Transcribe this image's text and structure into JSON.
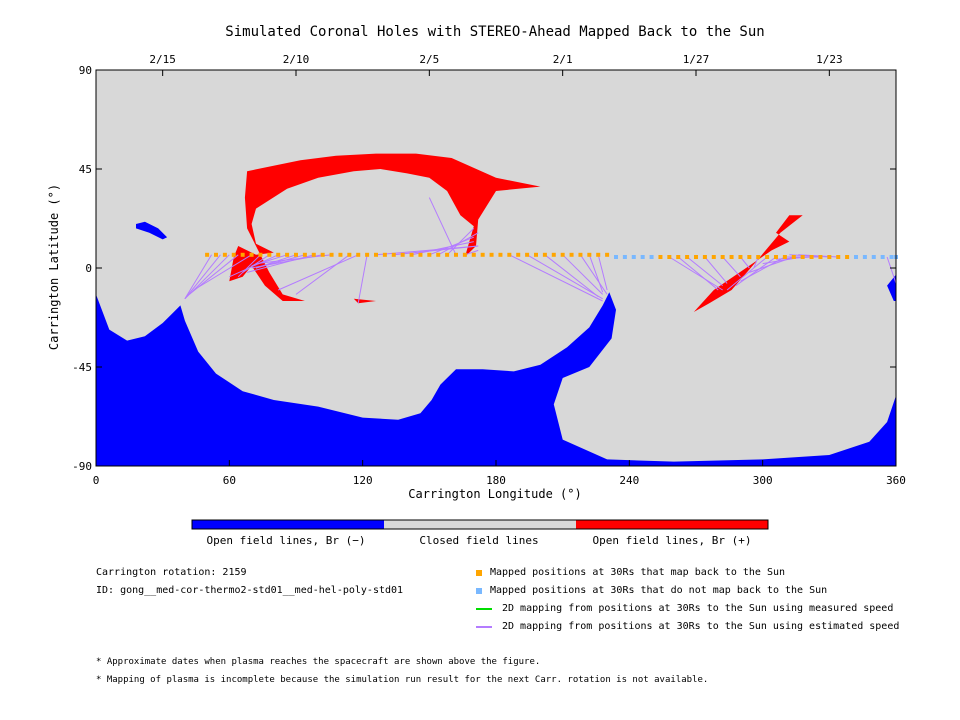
{
  "chart_data": {
    "type": "map",
    "title": "Simulated Coronal Holes with STEREO-Ahead Mapped Back to the Sun",
    "xlabel": "Carrington Longitude (°)",
    "ylabel": "Carrington Latitude (°)",
    "xlim": [
      0,
      360
    ],
    "ylim": [
      -90,
      90
    ],
    "x_ticks": [
      0,
      60,
      120,
      180,
      240,
      300,
      360
    ],
    "y_ticks": [
      -90,
      -45,
      0,
      45,
      90
    ],
    "top_axis": {
      "ticks": [
        {
          "label": "2/15",
          "lon": 30
        },
        {
          "label": "2/10",
          "lon": 90
        },
        {
          "label": "2/5",
          "lon": 150
        },
        {
          "label": "2/1",
          "lon": 210
        },
        {
          "label": "1/27",
          "lon": 270
        },
        {
          "label": "1/23",
          "lon": 330
        }
      ]
    },
    "colors": {
      "negative": "#0000ff",
      "closed": "#d8d8d8",
      "positive": "#ff0000",
      "mapped": "#ffa500",
      "unmapped": "#79b8ff",
      "measured": "#00dd00",
      "estimated": "#b47cff"
    },
    "colorbar": [
      {
        "label": "Open field lines, Br (−)",
        "color": "#0000ff"
      },
      {
        "label": "Closed field lines",
        "color": "#d8d8d8"
      },
      {
        "label": "Open field lines, Br (+)",
        "color": "#ff0000"
      }
    ],
    "negative_regions": [
      {
        "points": [
          [
            0,
            -90
          ],
          [
            0,
            -12
          ],
          [
            6,
            -28
          ],
          [
            14,
            -33
          ],
          [
            22,
            -31
          ],
          [
            30,
            -25
          ],
          [
            35,
            -20
          ],
          [
            38,
            -17
          ],
          [
            40,
            -24
          ],
          [
            46,
            -38
          ],
          [
            54,
            -48
          ],
          [
            66,
            -56
          ],
          [
            80,
            -60
          ],
          [
            100,
            -63
          ],
          [
            120,
            -68
          ],
          [
            136,
            -69
          ],
          [
            146,
            -66
          ],
          [
            151,
            -60
          ],
          [
            155,
            -53
          ],
          [
            162,
            -46
          ],
          [
            174,
            -46
          ],
          [
            188,
            -47
          ],
          [
            200,
            -44
          ],
          [
            212,
            -36
          ],
          [
            222,
            -27
          ],
          [
            228,
            -17
          ],
          [
            231,
            -11
          ],
          [
            234,
            -19
          ],
          [
            232,
            -32
          ],
          [
            222,
            -45
          ],
          [
            210,
            -50
          ],
          [
            206,
            -62
          ],
          [
            210,
            -78
          ],
          [
            230,
            -87
          ],
          [
            260,
            -88
          ],
          [
            300,
            -87
          ],
          [
            330,
            -85
          ],
          [
            348,
            -79
          ],
          [
            356,
            -70
          ],
          [
            360,
            -58
          ],
          [
            360,
            -90
          ]
        ]
      },
      {
        "points": [
          [
            359,
            -15
          ],
          [
            356,
            -8
          ],
          [
            360,
            -3
          ],
          [
            360,
            -15
          ]
        ]
      },
      {
        "points": [
          [
            18,
            20
          ],
          [
            22,
            21
          ],
          [
            28,
            18
          ],
          [
            32,
            14
          ],
          [
            30,
            13
          ],
          [
            24,
            16
          ],
          [
            18,
            18
          ]
        ]
      }
    ],
    "positive_regions": [
      {
        "points": [
          [
            68,
            44
          ],
          [
            92,
            49
          ],
          [
            108,
            51
          ],
          [
            126,
            52
          ],
          [
            144,
            52
          ],
          [
            160,
            50
          ],
          [
            180,
            41
          ],
          [
            200,
            37
          ],
          [
            180,
            35
          ],
          [
            172,
            22
          ],
          [
            171,
            10
          ],
          [
            166,
            5
          ],
          [
            170,
            19
          ],
          [
            164,
            24
          ],
          [
            158,
            35
          ],
          [
            150,
            41
          ],
          [
            140,
            43
          ],
          [
            128,
            45
          ],
          [
            116,
            44
          ],
          [
            100,
            41
          ],
          [
            86,
            36
          ],
          [
            72,
            27
          ],
          [
            70,
            20
          ],
          [
            72,
            11
          ],
          [
            80,
            7
          ],
          [
            72,
            6
          ],
          [
            64,
            10
          ],
          [
            62,
            5
          ],
          [
            60,
            -6
          ],
          [
            66,
            -4
          ],
          [
            70,
            1
          ],
          [
            76,
            -8
          ],
          [
            84,
            -15
          ],
          [
            94,
            -15
          ],
          [
            84,
            -12
          ],
          [
            78,
            -2
          ],
          [
            68,
            18
          ],
          [
            67,
            32
          ]
        ]
      },
      {
        "points": [
          [
            116,
            -14
          ],
          [
            126,
            -15
          ],
          [
            118,
            -16
          ]
        ]
      },
      {
        "points": [
          [
            269,
            -20
          ],
          [
            278,
            -10
          ],
          [
            294,
            1
          ],
          [
            304,
            8
          ],
          [
            312,
            12
          ],
          [
            306,
            16
          ],
          [
            312,
            24
          ],
          [
            318,
            24
          ],
          [
            308,
            16
          ],
          [
            298,
            4
          ],
          [
            286,
            -10
          ],
          [
            276,
            -16
          ]
        ]
      }
    ],
    "mapped_points": {
      "lon": [
        50,
        54,
        58,
        62,
        66,
        70,
        74,
        78,
        82,
        86,
        90,
        94,
        98,
        102,
        106,
        110,
        114,
        118,
        122,
        126,
        130,
        134,
        138,
        142,
        146,
        150,
        154,
        158,
        162,
        166,
        170,
        174,
        178,
        182,
        186,
        190,
        194,
        198,
        202,
        206,
        210,
        214,
        218,
        222,
        226,
        230,
        254,
        258,
        262,
        266,
        270,
        274,
        278,
        282,
        286,
        290,
        294,
        298,
        302,
        306,
        310,
        314,
        318,
        322,
        326,
        330,
        334,
        338
      ],
      "lat": [
        6,
        6,
        6,
        6,
        6,
        6,
        6,
        6,
        6,
        6,
        6,
        6,
        6,
        6,
        6,
        6,
        6,
        6,
        6,
        6,
        6,
        6,
        6,
        6,
        6,
        6,
        6,
        6,
        6,
        6,
        6,
        6,
        6,
        6,
        6,
        6,
        6,
        6,
        6,
        6,
        6,
        6,
        6,
        6,
        6,
        6,
        5,
        5,
        5,
        5,
        5,
        5,
        5,
        5,
        5,
        5,
        5,
        5,
        5,
        5,
        5,
        5,
        5,
        5,
        5,
        5,
        5,
        5
      ]
    },
    "unmapped_points": {
      "lon": [
        234,
        238,
        242,
        246,
        250,
        342,
        346,
        350,
        354,
        358,
        360
      ],
      "lat": [
        5,
        5,
        5,
        5,
        5,
        5,
        5,
        5,
        5,
        5,
        5
      ]
    },
    "estimated_speed_lines": [
      [
        52,
        6,
        40,
        -14
      ],
      [
        56,
        6,
        40,
        -14
      ],
      [
        60,
        6,
        40,
        -14
      ],
      [
        64,
        6,
        42,
        -12
      ],
      [
        70,
        6,
        44,
        -10
      ],
      [
        74,
        6,
        64,
        -4
      ],
      [
        78,
        6,
        66,
        -2
      ],
      [
        82,
        6,
        60,
        -4
      ],
      [
        86,
        6,
        70,
        1
      ],
      [
        90,
        6,
        72,
        0
      ],
      [
        94,
        6,
        72,
        0
      ],
      [
        98,
        6,
        68,
        -2
      ],
      [
        102,
        6,
        70,
        0
      ],
      [
        106,
        6,
        72,
        2
      ],
      [
        114,
        6,
        90,
        -12
      ],
      [
        118,
        6,
        82,
        -10
      ],
      [
        122,
        6,
        118,
        -16
      ],
      [
        126,
        6,
        172,
        10
      ],
      [
        134,
        6,
        172,
        10
      ],
      [
        142,
        6,
        170,
        12
      ],
      [
        150,
        6,
        170,
        14
      ],
      [
        154,
        6,
        172,
        16
      ],
      [
        158,
        6,
        170,
        18
      ],
      [
        162,
        6,
        150,
        32
      ],
      [
        166,
        6,
        172,
        8
      ],
      [
        186,
        6,
        228,
        -15
      ],
      [
        194,
        6,
        228,
        -14
      ],
      [
        202,
        6,
        226,
        -13
      ],
      [
        210,
        6,
        228,
        -12
      ],
      [
        218,
        6,
        230,
        -12
      ],
      [
        222,
        6,
        228,
        -11
      ],
      [
        226,
        6,
        230,
        -10
      ],
      [
        258,
        5,
        282,
        -10
      ],
      [
        262,
        5,
        280,
        -10
      ],
      [
        266,
        5,
        282,
        -8
      ],
      [
        274,
        5,
        284,
        -7
      ],
      [
        282,
        5,
        290,
        -4
      ],
      [
        290,
        5,
        294,
        0
      ],
      [
        298,
        5,
        296,
        0
      ],
      [
        302,
        5,
        284,
        -10
      ],
      [
        306,
        5,
        288,
        -8
      ],
      [
        310,
        5,
        290,
        -6
      ],
      [
        314,
        5,
        294,
        -2
      ],
      [
        318,
        5,
        300,
        2
      ],
      [
        322,
        5,
        306,
        4
      ],
      [
        326,
        5,
        310,
        5
      ],
      [
        330,
        5,
        312,
        6
      ],
      [
        334,
        5,
        316,
        6
      ],
      [
        356,
        5,
        360,
        -7
      ]
    ],
    "measured_speed_lines": []
  },
  "legend_items": [
    {
      "key": "mapped",
      "label": "Mapped positions at 30Rs that map back to the Sun"
    },
    {
      "key": "unmapped",
      "label": "Mapped positions at 30Rs that do not map back to the Sun"
    },
    {
      "key": "measured",
      "label": "2D mapping from positions at 30Rs to the Sun using measured speed"
    },
    {
      "key": "estimated",
      "label": "2D mapping from positions at 30Rs to the Sun using estimated speed"
    }
  ],
  "info": {
    "rotation": "Carrington rotation: 2159",
    "id": "ID: gong__med-cor-thermo2-std01__med-hel-poly-std01"
  },
  "notes": [
    "* Approximate dates when plasma reaches the spacecraft are shown above the figure.",
    "* Mapping of plasma is incomplete because the simulation run result for the next Carr. rotation is not available."
  ]
}
